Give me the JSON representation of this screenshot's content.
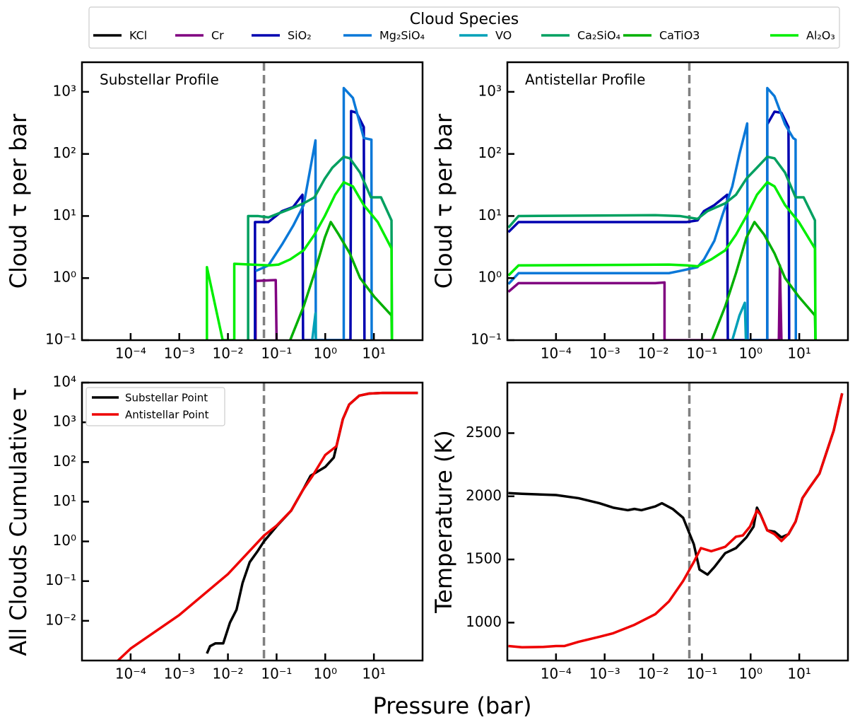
{
  "xlabel": "Pressure (bar)",
  "chart_data": [
    {
      "type": "line",
      "title": "Substellar Profile",
      "ylabel": "Cloud τ per bar",
      "xscale": "log",
      "yscale": "log",
      "legend": "above",
      "legend_title": "Cloud Species",
      "xlim": [
        1e-05,
        100
      ],
      "ylim": [
        0.1,
        3000
      ],
      "vline": 0.055,
      "xticks": [
        {
          "value": 0.0001,
          "label": "10⁻⁴"
        },
        {
          "value": 0.001,
          "label": "10⁻³"
        },
        {
          "value": 0.01,
          "label": "10⁻²"
        },
        {
          "value": 0.1,
          "label": "10⁻¹"
        },
        {
          "value": 1,
          "label": "10⁰"
        },
        {
          "value": 10,
          "label": "10¹"
        }
      ],
      "yticks": [
        {
          "value": 0.1,
          "label": "10⁻¹"
        },
        {
          "value": 1,
          "label": "10⁰"
        },
        {
          "value": 10,
          "label": "10¹"
        },
        {
          "value": 100,
          "label": "10²"
        },
        {
          "value": 1000,
          "label": "10³"
        }
      ],
      "series": [
        {
          "name": "KCl",
          "color": "#000000",
          "x": [],
          "values": []
        },
        {
          "name": "Cr",
          "color": "#800080",
          "x": [
            0.037,
            0.037,
            0.096,
            0.1
          ],
          "values": [
            0.1,
            0.9,
            0.93,
            0.1
          ]
        },
        {
          "name": "SiO₂",
          "color": "#0000b0",
          "x": [
            0.036,
            0.036,
            0.068,
            0.13,
            0.22,
            0.34,
            0.35,
            3.3,
            3.4,
            4.4,
            6.2,
            6.4
          ],
          "values": [
            0.1,
            8,
            8,
            12,
            14,
            22,
            0.1,
            0.1,
            490,
            460,
            270,
            0.1
          ]
        },
        {
          "name": "Mg₂SiO₄",
          "color": "#0a78d8",
          "x": [
            0.037,
            0.068,
            0.13,
            0.22,
            0.36,
            0.63,
            0.64,
            2.4,
            2.4,
            3.7,
            5.2,
            6.2,
            8.9,
            9.0
          ],
          "values": [
            1.3,
            1.6,
            3.5,
            7,
            15,
            165,
            0.1,
            0.1,
            1150,
            800,
            300,
            180,
            170,
            0.1
          ]
        },
        {
          "name": "VO",
          "color": "#00a0b8",
          "x": [
            0.54,
            0.63,
            0.64
          ],
          "values": [
            0.1,
            0.27,
            0.1
          ]
        },
        {
          "name": "Ca₂SiO₄",
          "color": "#00a060",
          "x": [
            0.026,
            0.026,
            0.041,
            0.068,
            0.11,
            0.19,
            0.36,
            0.6,
            0.98,
            1.4,
            2.4,
            3.2,
            5.2,
            8.7,
            14,
            23,
            23.5
          ],
          "values": [
            0.1,
            10,
            10,
            9.5,
            11,
            13,
            16,
            20,
            40,
            60,
            90,
            85,
            50,
            20,
            20,
            8.5,
            0.1
          ]
        },
        {
          "name": "CaTiO3",
          "color": "#00b000",
          "x": [
            0.19,
            0.36,
            0.6,
            0.98,
            1.3,
            1.9,
            3.2,
            5.2,
            10.2,
            23,
            23.5
          ],
          "values": [
            0.1,
            0.35,
            1.2,
            4.5,
            8,
            5,
            2.5,
            1,
            0.5,
            0.25,
            0.1
          ]
        },
        {
          "name": "Al₂O₃",
          "color": "#00ee00",
          "x": [
            0.0037,
            0.0037,
            0.0078,
            0.0135,
            0.0135,
            0.068,
            0.11,
            0.19,
            0.36,
            0.6,
            0.98,
            1.6,
            2.4,
            3.7,
            6.2,
            12,
            23,
            23.5
          ],
          "values": [
            0.1,
            1.5,
            0.1,
            0.1,
            1.7,
            1.6,
            1.65,
            2,
            2.8,
            5,
            10,
            22,
            35,
            30,
            15,
            8,
            3,
            0.1
          ]
        }
      ]
    },
    {
      "type": "line",
      "title": "Antistellar Profile",
      "ylabel": "Cloud τ per bar",
      "xscale": "log",
      "yscale": "log",
      "xlim": [
        1e-05,
        100
      ],
      "ylim": [
        0.1,
        3000
      ],
      "vline": 0.055,
      "xticks": [
        {
          "value": 0.0001,
          "label": "10⁻⁴"
        },
        {
          "value": 0.001,
          "label": "10⁻³"
        },
        {
          "value": 0.01,
          "label": "10⁻²"
        },
        {
          "value": 0.1,
          "label": "10⁻¹"
        },
        {
          "value": 1,
          "label": "10⁰"
        },
        {
          "value": 10,
          "label": "10¹"
        }
      ],
      "yticks": [
        {
          "value": 0.1,
          "label": "10⁻¹"
        },
        {
          "value": 1,
          "label": "10⁰"
        },
        {
          "value": 10,
          "label": "10¹"
        },
        {
          "value": 100,
          "label": "10²"
        },
        {
          "value": 1000,
          "label": "10³"
        }
      ],
      "series": [
        {
          "color": "#000000",
          "x": [],
          "values": []
        },
        {
          "color": "#800080",
          "x": [
            1.05e-05,
            1.7e-05,
            0.011,
            0.017,
            0.017,
            3.8,
            4.0,
            4.3
          ],
          "values": [
            0.6,
            0.83,
            0.83,
            0.85,
            0.1,
            0.1,
            1.6,
            0.1
          ]
        },
        {
          "color": "#0000b0",
          "x": [
            1.05e-05,
            1.7e-05,
            0.049,
            0.081,
            0.11,
            0.18,
            0.33,
            0.34,
            2.2,
            2.2,
            3.1,
            4.3,
            6.0,
            6.2
          ],
          "values": [
            5.5,
            8,
            8,
            8.5,
            12,
            15,
            22,
            0.1,
            0.1,
            300,
            480,
            460,
            270,
            0.1
          ]
        },
        {
          "color": "#0a78d8",
          "x": [
            1.05e-05,
            1.7e-05,
            0.021,
            0.035,
            0.081,
            0.11,
            0.18,
            0.26,
            0.42,
            0.59,
            0.85,
            0.87,
            2.2,
            2.2,
            3.1,
            5.1,
            7.5,
            8.4,
            8.5
          ],
          "values": [
            0.8,
            1.2,
            1.2,
            1.3,
            1.5,
            2,
            4,
            10,
            30,
            100,
            310,
            0.1,
            0.1,
            1150,
            850,
            300,
            180,
            170,
            0.1
          ]
        },
        {
          "color": "#00a0b8",
          "x": [
            0.42,
            0.59,
            0.76,
            0.8
          ],
          "values": [
            0.1,
            0.25,
            0.4,
            0.1
          ]
        },
        {
          "color": "#00a060",
          "x": [
            1.05e-05,
            1.7e-05,
            0.011,
            0.035,
            0.081,
            0.13,
            0.3,
            0.5,
            0.82,
            1.35,
            2.2,
            3.1,
            5.1,
            8.4,
            12.3,
            21,
            21.5
          ],
          "values": [
            6.5,
            10,
            10.3,
            10,
            9,
            12,
            16,
            22,
            40,
            60,
            90,
            85,
            50,
            20,
            20,
            8.5,
            0.1
          ]
        },
        {
          "color": "#00b000",
          "x": [
            0.16,
            0.3,
            0.5,
            0.82,
            1.2,
            1.9,
            3.1,
            5.1,
            9.8,
            21,
            21.5
          ],
          "values": [
            0.1,
            0.35,
            1.2,
            4.5,
            8,
            5,
            2.5,
            1,
            0.5,
            0.25,
            0.1
          ]
        },
        {
          "color": "#00ee00",
          "x": [
            1.05e-05,
            1.7e-05,
            0.021,
            0.049,
            0.081,
            0.155,
            0.3,
            0.5,
            0.82,
            1.35,
            2.2,
            3.1,
            5.1,
            9.8,
            21,
            21.5
          ],
          "values": [
            1.1,
            1.6,
            1.65,
            1.6,
            1.55,
            2,
            2.8,
            5,
            10,
            22,
            35,
            30,
            15,
            8,
            3,
            0.1
          ]
        }
      ]
    },
    {
      "type": "line",
      "ylabel": "All Clouds Cumulative τ",
      "xscale": "log",
      "yscale": "log",
      "legend": "upper left",
      "xlim": [
        1e-05,
        100
      ],
      "ylim": [
        0.001,
        10000
      ],
      "vline": 0.055,
      "xticks": [
        {
          "value": 0.0001,
          "label": "10⁻⁴"
        },
        {
          "value": 0.001,
          "label": "10⁻³"
        },
        {
          "value": 0.01,
          "label": "10⁻²"
        },
        {
          "value": 0.1,
          "label": "10⁻¹"
        },
        {
          "value": 1,
          "label": "10⁰"
        },
        {
          "value": 10,
          "label": "10¹"
        }
      ],
      "yticks": [
        {
          "value": 0.01,
          "label": "10⁻²"
        },
        {
          "value": 0.1,
          "label": "10⁻¹"
        },
        {
          "value": 1,
          "label": "10⁰"
        },
        {
          "value": 10,
          "label": "10¹"
        },
        {
          "value": 100,
          "label": "10²"
        },
        {
          "value": 1000,
          "label": "10³"
        },
        {
          "value": 10000,
          "label": "10⁴"
        }
      ],
      "series": [
        {
          "name": "Substellar Point",
          "color": "#000000",
          "x": [
            0.0037,
            0.0043,
            0.0055,
            0.008,
            0.011,
            0.015,
            0.02,
            0.028,
            0.04,
            0.055,
            0.1,
            0.2,
            0.35,
            0.5,
            1,
            1.5,
            2.3,
            3.1,
            5,
            8,
            15,
            80
          ],
          "values": [
            0.0015,
            0.0023,
            0.0027,
            0.0027,
            0.009,
            0.019,
            0.09,
            0.3,
            0.55,
            1,
            2.4,
            6,
            20,
            45,
            75,
            130,
            1200,
            2800,
            4700,
            5300,
            5500,
            5500
          ]
        },
        {
          "name": "Antistellar Point",
          "color": "#ee0000",
          "x": [
            5.5e-05,
            0.0001,
            0.001,
            0.01,
            0.055,
            0.1,
            0.2,
            0.35,
            0.55,
            1,
            1.7,
            2.3,
            3.1,
            5,
            8,
            15,
            30,
            80
          ],
          "values": [
            0.001,
            0.002,
            0.014,
            0.15,
            1.4,
            2.5,
            6,
            20,
            45,
            150,
            250,
            1200,
            2800,
            4700,
            5300,
            5500,
            5500,
            5500
          ]
        }
      ]
    },
    {
      "type": "line",
      "ylabel": "Temperature (K)",
      "xscale": "log",
      "yscale": "linear",
      "xlim": [
        1e-05,
        100
      ],
      "ylim": [
        700,
        2900
      ],
      "vline": 0.055,
      "xticks": [
        {
          "value": 0.0001,
          "label": "10⁻⁴"
        },
        {
          "value": 0.001,
          "label": "10⁻³"
        },
        {
          "value": 0.01,
          "label": "10⁻²"
        },
        {
          "value": 0.1,
          "label": "10⁻¹"
        },
        {
          "value": 1,
          "label": "10⁰"
        },
        {
          "value": 10,
          "label": "10¹"
        }
      ],
      "yticks": [
        1000,
        1500,
        2000,
        2500
      ],
      "series": [
        {
          "color": "#000000",
          "x": [
            1.05e-05,
            2e-05,
            0.0001,
            0.00029,
            0.00078,
            0.0015,
            0.003,
            0.0041,
            0.0057,
            0.011,
            0.015,
            0.025,
            0.041,
            0.068,
            0.089,
            0.13,
            0.18,
            0.3,
            0.5,
            0.82,
            1.15,
            1.35,
            1.6,
            2.2,
            3.1,
            4.3,
            6.0,
            8.4,
            11.6,
            16,
            26,
            51,
            76
          ],
          "values": [
            2025,
            2020,
            2010,
            1985,
            1945,
            1910,
            1890,
            1900,
            1890,
            1920,
            1945,
            1900,
            1830,
            1620,
            1420,
            1380,
            1440,
            1550,
            1590,
            1675,
            1760,
            1910,
            1855,
            1730,
            1720,
            1675,
            1700,
            1800,
            1985,
            2065,
            2180,
            2520,
            2815
          ]
        },
        {
          "color": "#ee0000",
          "x": [
            1.05e-05,
            2e-05,
            5.5e-05,
            0.0001,
            0.00015,
            0.00029,
            0.00078,
            0.0015,
            0.0041,
            0.011,
            0.021,
            0.041,
            0.068,
            0.095,
            0.155,
            0.3,
            0.5,
            0.69,
            0.97,
            1.35,
            1.6,
            2.2,
            3.1,
            4.3,
            6.0,
            8.4,
            11.6,
            16,
            26,
            51,
            76
          ],
          "values": [
            815,
            805,
            808,
            815,
            815,
            848,
            888,
            916,
            983,
            1067,
            1168,
            1330,
            1480,
            1590,
            1565,
            1600,
            1680,
            1690,
            1760,
            1888,
            1854,
            1730,
            1700,
            1646,
            1702,
            1800,
            1985,
            2065,
            2180,
            2520,
            2815
          ]
        }
      ]
    }
  ]
}
